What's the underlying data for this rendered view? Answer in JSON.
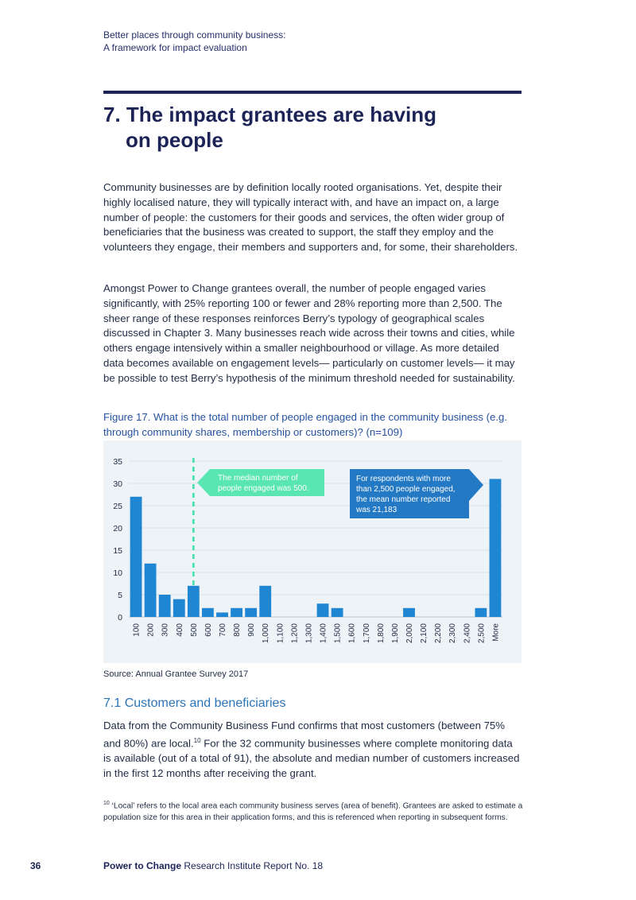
{
  "header": {
    "line1": "Better places through community business:",
    "line2": "A framework for impact evaluation"
  },
  "section": {
    "title_line1": "7. The impact grantees are having",
    "title_line2": "on people"
  },
  "paragraphs": {
    "p1": "Community businesses are by definition locally rooted organisations. Yet, despite their highly localised nature, they will typically interact with, and have an impact on, a large number of people: the customers for their goods and services, the often wider group of beneficiaries that the business was created to support, the staff they employ and the volunteers they engage, their members and supporters and, for some, their shareholders.",
    "p2": "Amongst Power to Change grantees overall, the number of people engaged varies significantly, with 25% reporting 100 or fewer and 28% reporting more than 2,500. The sheer range of these responses reinforces Berry’s typology of geographical scales discussed in Chapter 3. Many businesses reach wide across their towns and cities, while others engage intensively within a smaller neighbourhood or village. As more detailed data becomes available on engagement levels— particularly on customer levels— it may be possible to test Berry’s hypothesis of the minimum threshold needed for sustainability."
  },
  "figure": {
    "caption": "Figure 17. What is the total number of people engaged in the community business (e.g. through community shares, membership or customers)? (n=109)",
    "source": "Source: Annual Grantee Survey 2017"
  },
  "chart_data": {
    "type": "bar",
    "title": "",
    "xlabel": "",
    "ylabel": "",
    "ylim": [
      0,
      35
    ],
    "yticks": [
      0,
      5,
      10,
      15,
      20,
      25,
      30,
      35
    ],
    "grid": true,
    "categories": [
      "100",
      "200",
      "300",
      "400",
      "500",
      "600",
      "700",
      "800",
      "900",
      "1,000",
      "1,100",
      "1,200",
      "1,300",
      "1,400",
      "1,500",
      "1,600",
      "1,700",
      "1,800",
      "1,900",
      "2,000",
      "2,100",
      "2,200",
      "2,300",
      "2,400",
      "2,500",
      "More"
    ],
    "values": [
      27,
      12,
      5,
      4,
      7,
      2,
      1,
      2,
      2,
      7,
      0,
      0,
      0,
      3,
      2,
      0,
      0,
      0,
      0,
      2,
      0,
      0,
      0,
      0,
      2,
      31
    ],
    "bar_color": "#1f86d4",
    "median_line_category": "500",
    "median_line_color": "#3fe0a6",
    "annotations": [
      {
        "text_line1": "The median number of",
        "text_line2": "people engaged was 500.",
        "color": "#5ae6b3"
      },
      {
        "text_line1": "For respondents with more",
        "text_line2": "than 2,500 people engaged,",
        "text_line3": "the mean number reported",
        "text_line4": "was 21,183",
        "color": "#2479c4"
      }
    ]
  },
  "subsection": {
    "title": "7.1 Customers and beneficiaries",
    "p3_part1": "Data from the Community Business Fund confirms that most customers (between 75% and 80%) are local.",
    "p3_fn": "10",
    "p3_part2": " For the 32 community businesses where complete monitoring data is available (out of a total of 91), the absolute and median number of customers increased in the first 12 months after receiving the grant."
  },
  "footnote": {
    "number": "10",
    "text": "‘Local’ refers to the local area each community business serves (area of benefit). Grantees are asked to estimate a population size for this area in their application forms, and this is referenced when reporting in subsequent forms."
  },
  "footer": {
    "page_number": "36",
    "brand_bold": "Power to Change",
    "brand_rest": " Research Institute Report No. 18"
  }
}
